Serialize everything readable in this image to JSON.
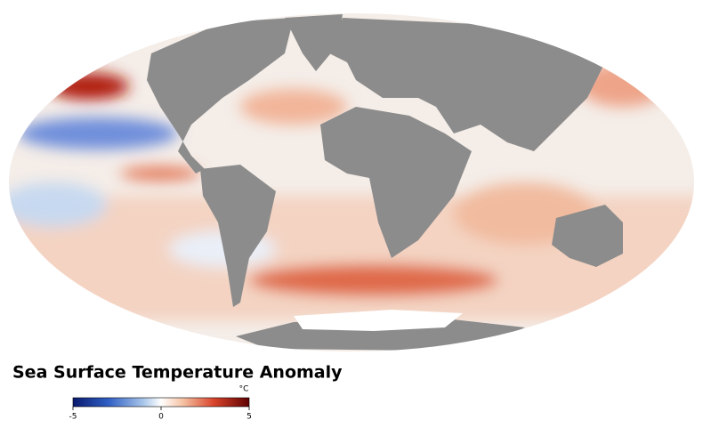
{
  "title": "Sea Surface Temperature Anomaly",
  "colorbar": {
    "unit": "°C",
    "lim": [
      -5,
      5
    ],
    "ticks": [
      -5,
      0,
      5
    ]
  }
}
